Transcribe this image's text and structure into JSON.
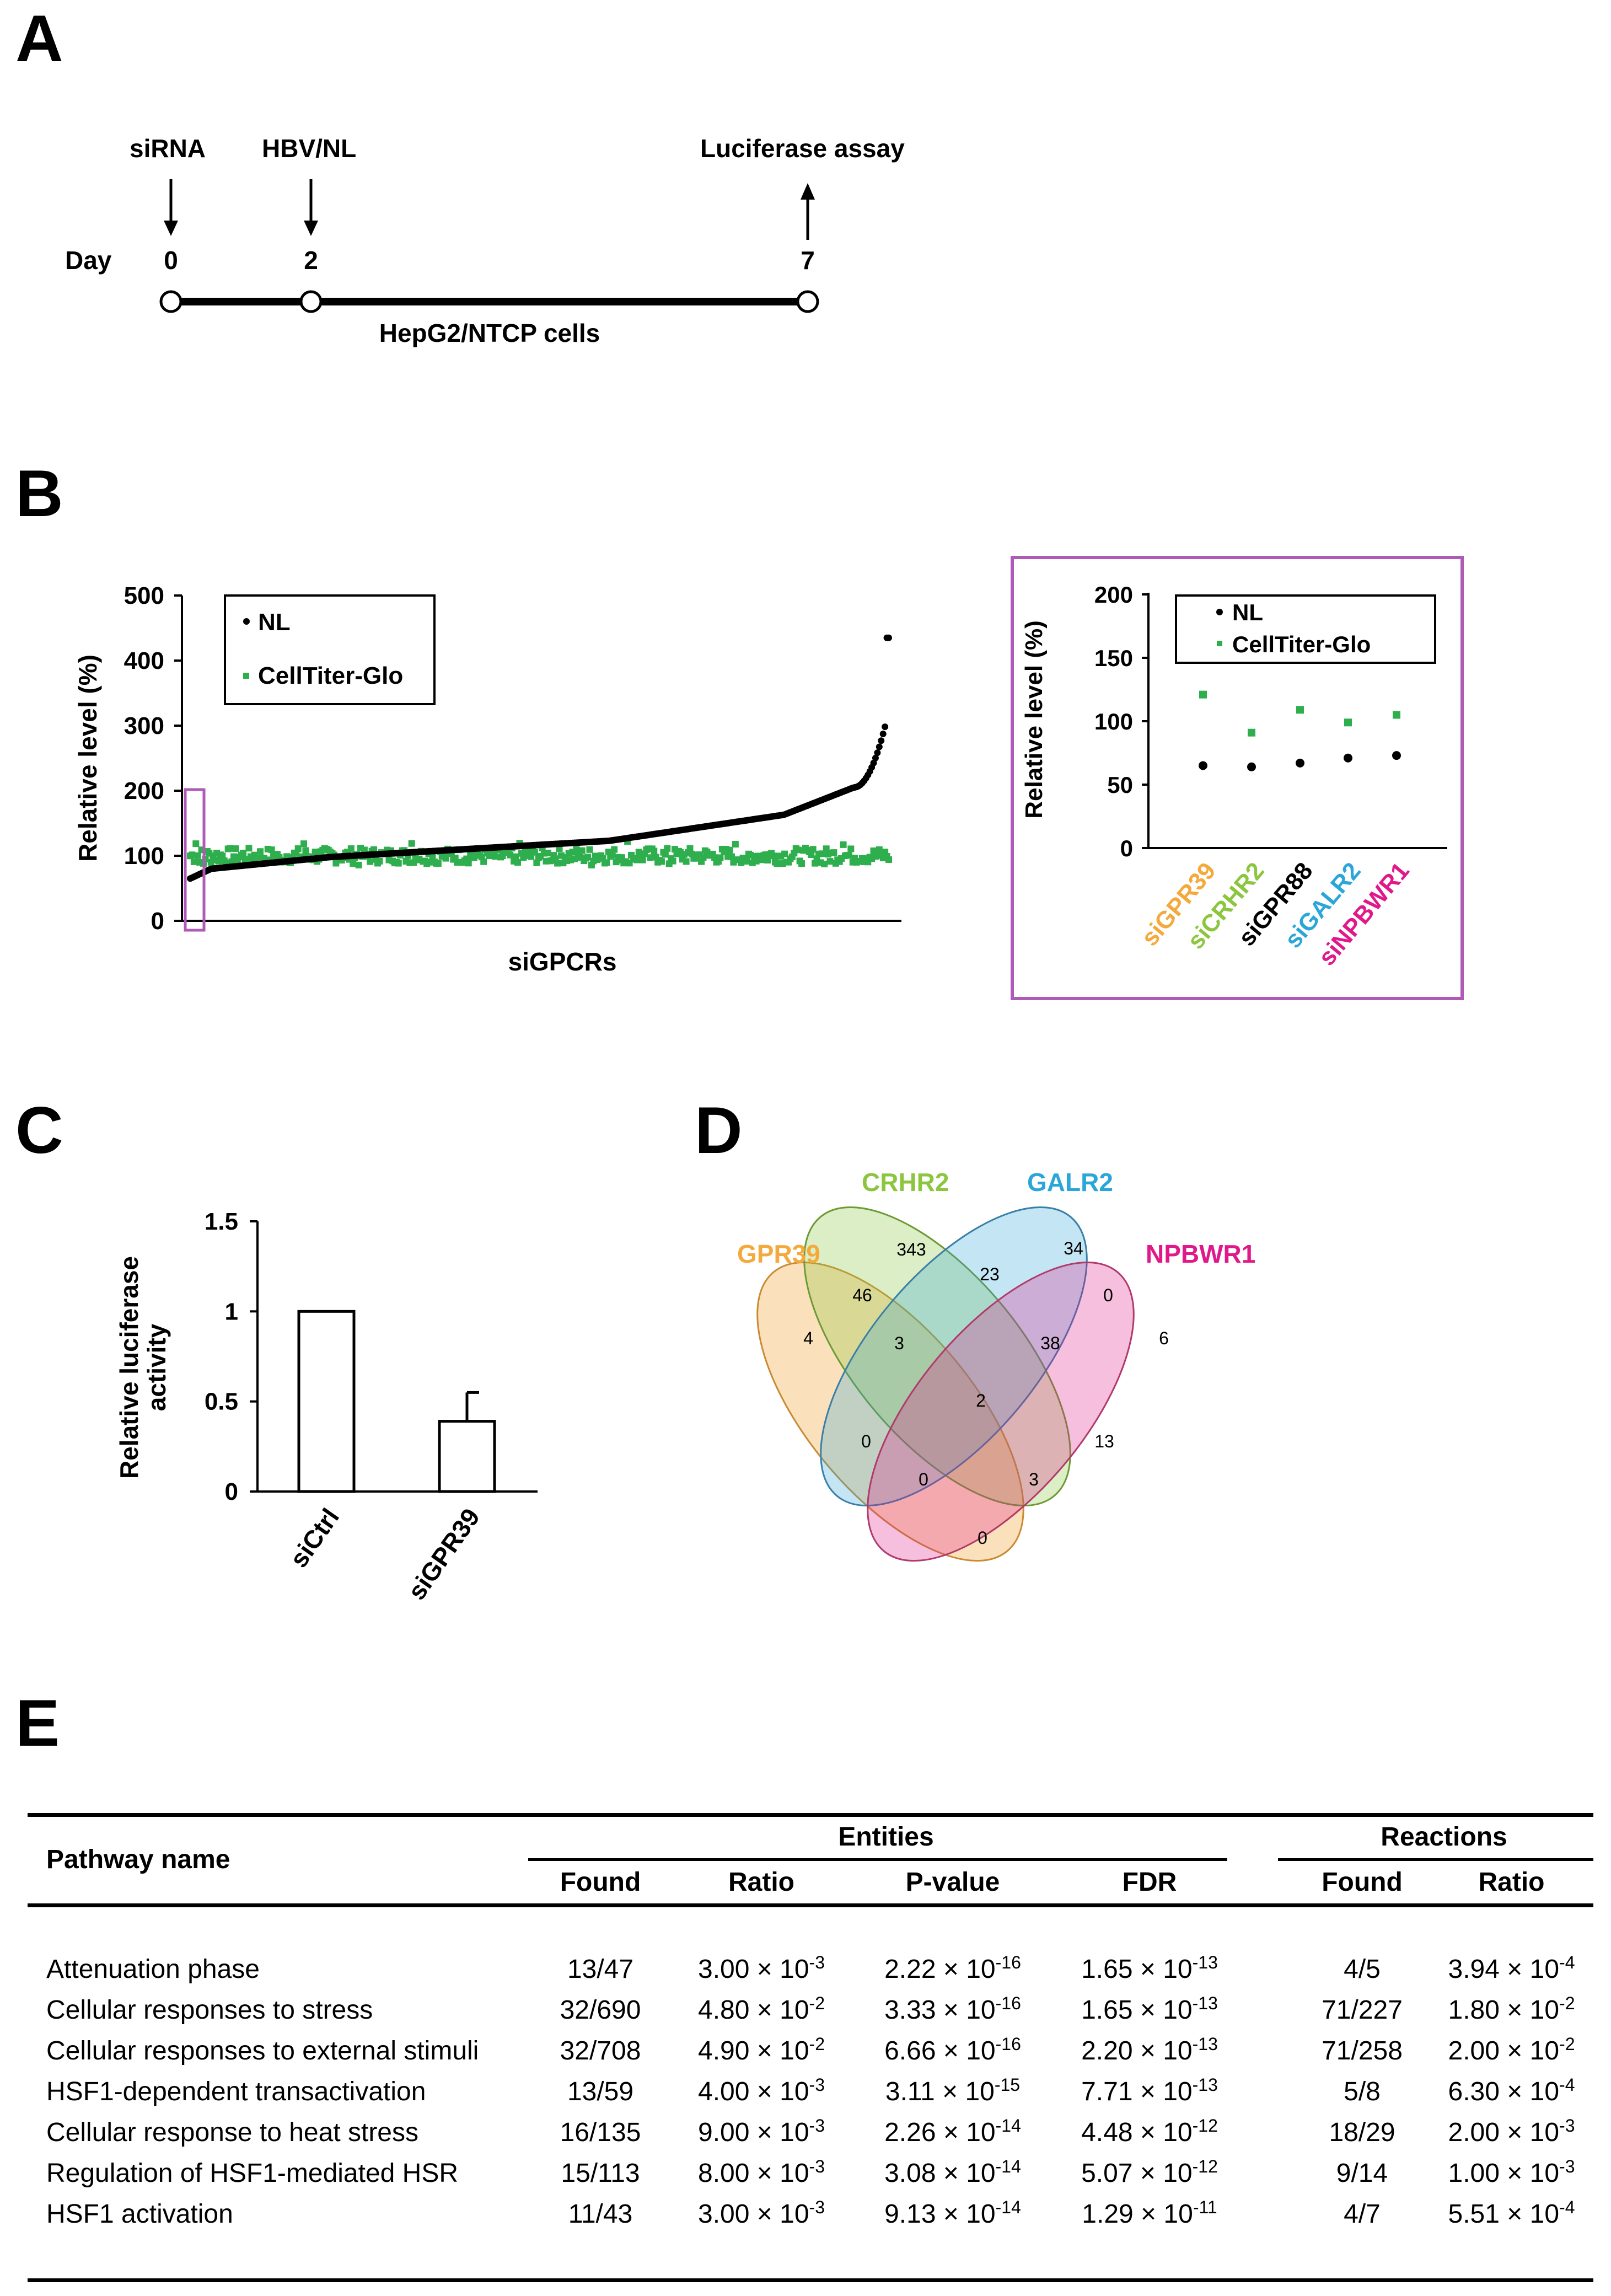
{
  "panels": {
    "a": "A",
    "b": "B",
    "c": "C",
    "d": "D",
    "e": "E"
  },
  "timeline": {
    "events": [
      {
        "label": "siRNA",
        "day": "0"
      },
      {
        "label": "HBV/NL",
        "day": "2"
      },
      {
        "label": "Luciferase assay",
        "day": "7"
      }
    ],
    "day_label": "Day",
    "cells_label": "HepG2/NTCP cells"
  },
  "screen": {
    "ylabel": "Relative level (%)",
    "xlabel": "siGPCRs",
    "yticks": [
      "0",
      "100",
      "200",
      "300",
      "400",
      "500"
    ],
    "legend": {
      "nl": "NL",
      "ctg": "CellTiter-Glo"
    },
    "colors": {
      "nl": "#000000",
      "ctg": "#2fae4e",
      "highlight_box": "#b05ab8"
    }
  },
  "inset": {
    "ylabel": "Relative level (%)",
    "yticks": [
      "0",
      "50",
      "100",
      "150",
      "200"
    ],
    "legend": {
      "nl": "NL",
      "ctg": "CellTiter-Glo"
    },
    "categories": [
      {
        "name": "siGPR39",
        "color": "#f4a93c"
      },
      {
        "name": "siCRHR2",
        "color": "#8cc63f"
      },
      {
        "name": "siGPR88",
        "color": "#000000"
      },
      {
        "name": "siGALR2",
        "color": "#2aa6d8"
      },
      {
        "name": "siNPBWR1",
        "color": "#e0198a"
      }
    ]
  },
  "luciferase": {
    "ylabel_line1": "Relative luciferase",
    "ylabel_line2": "activity",
    "yticks": [
      "0",
      "0.5",
      "1",
      "1.5"
    ],
    "categories": [
      "siCtrl",
      "siGPR39"
    ]
  },
  "chart_data": [
    {
      "type": "scatter",
      "title": "",
      "xlabel": "siGPCRs",
      "ylabel": "Relative level (%)",
      "ylim": [
        0,
        500
      ],
      "series": [
        {
          "name": "NL",
          "description": "sorted ascending, ~370 siRNAs",
          "min": 65,
          "max": 435
        },
        {
          "name": "CellTiter-Glo",
          "description": "roughly flat",
          "mean": 100
        }
      ]
    },
    {
      "type": "scatter",
      "title": "",
      "ylabel": "Relative level (%)",
      "ylim": [
        0,
        200
      ],
      "categories": [
        "siGPR39",
        "siCRHR2",
        "siGPR88",
        "siGALR2",
        "siNPBWR1"
      ],
      "series": [
        {
          "name": "NL",
          "values": [
            65,
            64,
            67,
            71,
            73
          ]
        },
        {
          "name": "CellTiter-Glo",
          "values": [
            121,
            91,
            109,
            99,
            105
          ]
        }
      ]
    },
    {
      "type": "bar",
      "title": "",
      "ylabel": "Relative luciferase activity",
      "ylim": [
        0,
        1.5
      ],
      "categories": [
        "siCtrl",
        "siGPR39"
      ],
      "values": [
        1.0,
        0.39
      ],
      "error": [
        0,
        0.16
      ]
    }
  ],
  "venn": {
    "sets": [
      {
        "name": "GPR39",
        "color": "#f4a93c"
      },
      {
        "name": "CRHR2",
        "color": "#8cc63f"
      },
      {
        "name": "GALR2",
        "color": "#2aa6d8"
      },
      {
        "name": "NPBWR1",
        "color": "#e0198a"
      }
    ],
    "counts": [
      "343",
      "34",
      "23",
      "46",
      "0",
      "4",
      "6",
      "3",
      "38",
      "2",
      "0",
      "13",
      "0",
      "3",
      "0"
    ]
  },
  "table": {
    "header_pathway": "Pathway name",
    "group_entities": "Entities",
    "group_reactions": "Reactions",
    "columns": [
      "Found",
      "Ratio",
      "P-value",
      "FDR",
      "Found",
      "Ratio"
    ],
    "times": "×",
    "rows": [
      {
        "name": "Attenuation phase",
        "found": "13/47",
        "ratio_m": "3.00",
        "ratio_e": "-3",
        "p_m": "2.22",
        "p_e": "-16",
        "fdr_m": "1.65",
        "fdr_e": "-13",
        "r_found": "4/5",
        "r_ratio_m": "3.94",
        "r_ratio_e": "-4"
      },
      {
        "name": "Cellular responses to stress",
        "found": "32/690",
        "ratio_m": "4.80",
        "ratio_e": "-2",
        "p_m": "3.33",
        "p_e": "-16",
        "fdr_m": "1.65",
        "fdr_e": "-13",
        "r_found": "71/227",
        "r_ratio_m": "1.80",
        "r_ratio_e": "-2"
      },
      {
        "name": "Cellular responses to external stimuli",
        "found": "32/708",
        "ratio_m": "4.90",
        "ratio_e": "-2",
        "p_m": "6.66",
        "p_e": "-16",
        "fdr_m": "2.20",
        "fdr_e": "-13",
        "r_found": "71/258",
        "r_ratio_m": "2.00",
        "r_ratio_e": "-2"
      },
      {
        "name": "HSF1-dependent transactivation",
        "found": "13/59",
        "ratio_m": "4.00",
        "ratio_e": "-3",
        "p_m": "3.11",
        "p_e": "-15",
        "fdr_m": "7.71",
        "fdr_e": "-13",
        "r_found": "5/8",
        "r_ratio_m": "6.30",
        "r_ratio_e": "-4"
      },
      {
        "name": "Cellular response to heat stress",
        "found": "16/135",
        "ratio_m": "9.00",
        "ratio_e": "-3",
        "p_m": "2.26",
        "p_e": "-14",
        "fdr_m": "4.48",
        "fdr_e": "-12",
        "r_found": "18/29",
        "r_ratio_m": "2.00",
        "r_ratio_e": "-3"
      },
      {
        "name": "Regulation of HSF1-mediated HSR",
        "found": "15/113",
        "ratio_m": "8.00",
        "ratio_e": "-3",
        "p_m": "3.08",
        "p_e": "-14",
        "fdr_m": "5.07",
        "fdr_e": "-12",
        "r_found": "9/14",
        "r_ratio_m": "1.00",
        "r_ratio_e": "-3"
      },
      {
        "name": "HSF1 activation",
        "found": "11/43",
        "ratio_m": "3.00",
        "ratio_e": "-3",
        "p_m": "9.13",
        "p_e": "-14",
        "fdr_m": "1.29",
        "fdr_e": "-11",
        "r_found": "4/7",
        "r_ratio_m": "5.51",
        "r_ratio_e": "-4"
      }
    ]
  }
}
